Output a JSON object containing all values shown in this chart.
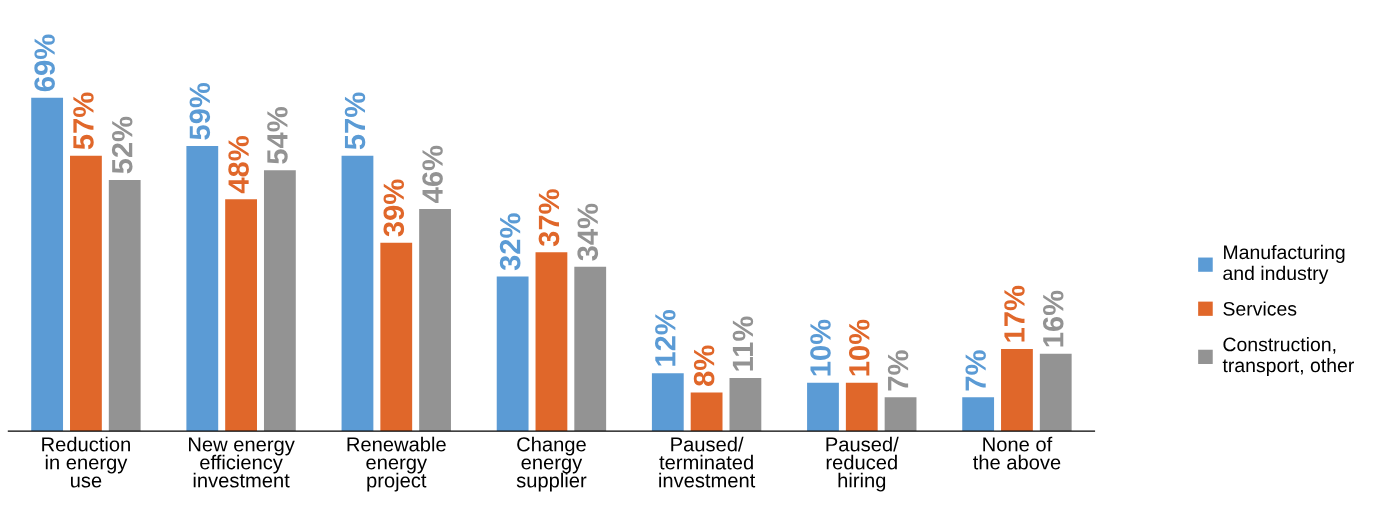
{
  "chart_data": {
    "type": "bar",
    "categories": [
      "Reduction\nin energy\nuse",
      "New energy\nefficiency\ninvestment",
      "Renewable\nenergy\nproject",
      "Change\nenergy\nsupplier",
      "Paused/\nterminated\ninvestment",
      "Paused/\nreduced\nhiring",
      "None of\nthe above"
    ],
    "series": [
      {
        "name": "Manufacturing\nand industry",
        "color": "#5b9bd5",
        "values": [
          69,
          59,
          57,
          32,
          12,
          10,
          7
        ],
        "value_labels": [
          "69%",
          "59%",
          "57%",
          "32%",
          "12%",
          "10%",
          "7%"
        ]
      },
      {
        "name": "Services",
        "color": "#e0672a",
        "values": [
          57,
          48,
          39,
          37,
          8,
          10,
          17
        ],
        "value_labels": [
          "57%",
          "48%",
          "39%",
          "37%",
          "8%",
          "10%",
          "17%"
        ]
      },
      {
        "name": "Construction,\ntransport, other",
        "color": "#939393",
        "values": [
          52,
          54,
          46,
          34,
          11,
          7,
          16
        ],
        "value_labels": [
          "52%",
          "54%",
          "46%",
          "34%",
          "11%",
          "7%",
          "16%"
        ]
      }
    ],
    "legend": "right",
    "grid": false
  }
}
